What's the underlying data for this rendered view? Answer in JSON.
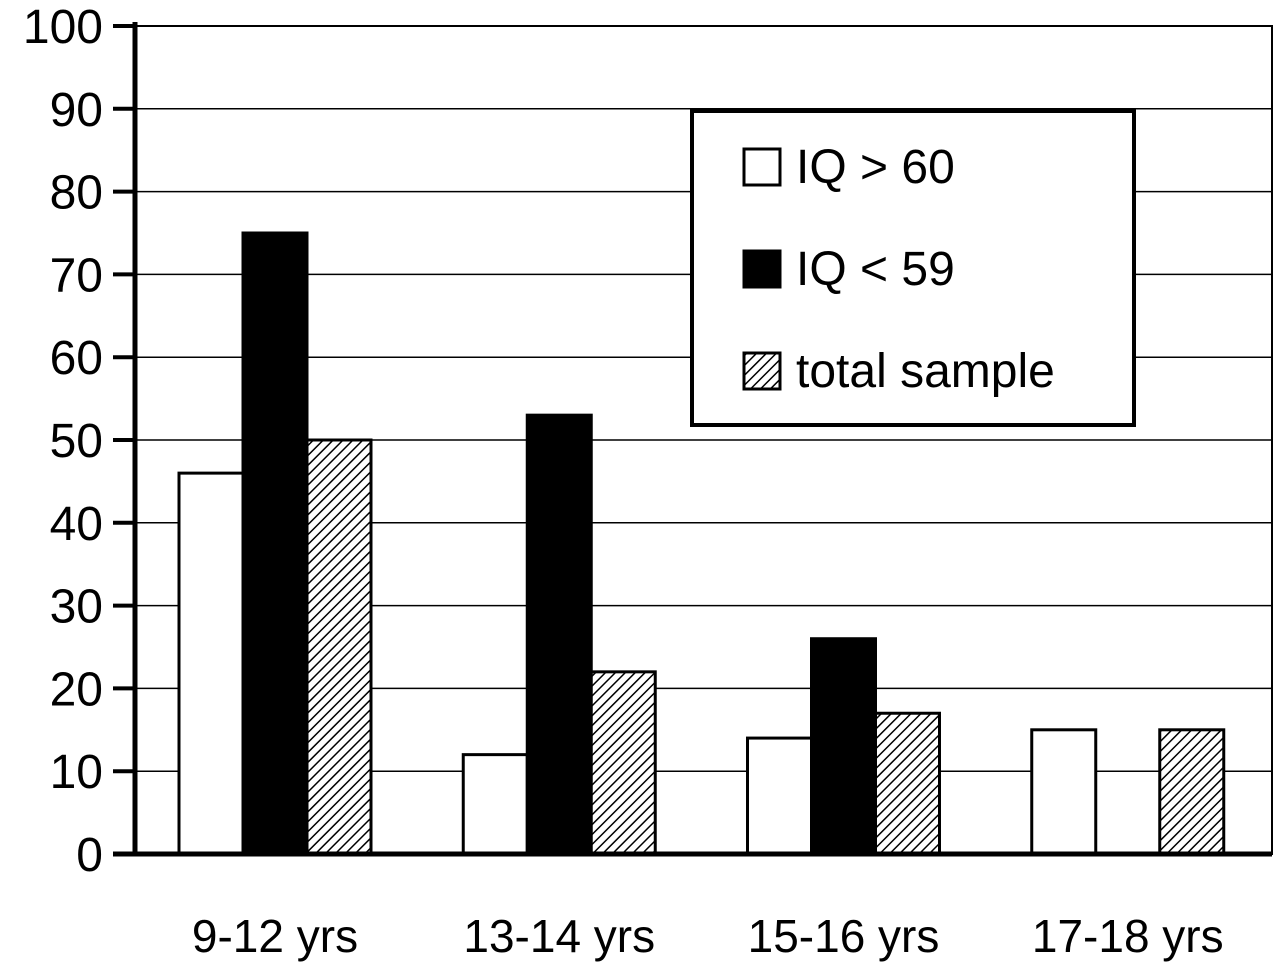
{
  "chart_data": {
    "type": "bar",
    "categories": [
      "9-12 yrs",
      "13-14 yrs",
      "15-16 yrs",
      "17-18 yrs"
    ],
    "series": [
      {
        "name": "IQ > 60",
        "values": [
          46,
          12,
          14,
          15
        ],
        "fill": "#ffffff"
      },
      {
        "name": "IQ < 59",
        "values": [
          75,
          53,
          26,
          null
        ],
        "fill": "#000000"
      },
      {
        "name": "total sample",
        "values": [
          50,
          22,
          17,
          15
        ],
        "fill": "hatch"
      }
    ],
    "ylim": [
      0,
      100
    ],
    "yticks": [
      0,
      10,
      20,
      30,
      40,
      50,
      60,
      70,
      80,
      90,
      100
    ],
    "grid": true,
    "legend_position": "top-right",
    "title": "",
    "xlabel": "",
    "ylabel": ""
  }
}
